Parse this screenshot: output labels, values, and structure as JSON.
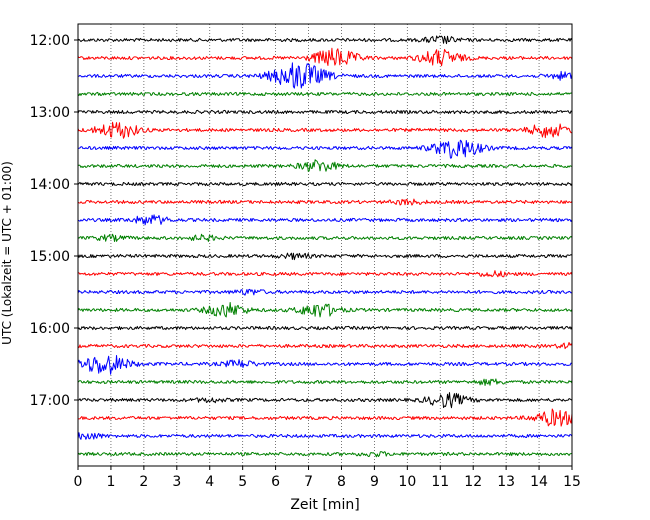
{
  "chart_data": {
    "type": "line",
    "title": "",
    "xlabel": "Zeit  [min]",
    "ylabel": "UTC (Lokalzeit = UTC + 01:00)",
    "xlim": [
      0,
      15
    ],
    "x_ticks": [
      "0",
      "1",
      "2",
      "3",
      "4",
      "5",
      "6",
      "7",
      "8",
      "9",
      "10",
      "11",
      "12",
      "13",
      "14",
      "15"
    ],
    "y_tick_labels": [
      "12:00",
      "13:00",
      "14:00",
      "15:00",
      "16:00",
      "17:00"
    ],
    "grid": "vertical dotted lines at each minute",
    "trace_start": "12:00",
    "trace_interval_min": 15,
    "trace_colors": [
      "#000000",
      "#ff0000",
      "#0000ff",
      "#008000"
    ],
    "traces": [
      {
        "start": "12:00",
        "color": "#000000",
        "events": [
          {
            "t": 11.0,
            "amp": 0.3
          }
        ]
      },
      {
        "start": "12:15",
        "color": "#ff0000",
        "events": [
          {
            "t": 7.8,
            "amp": 0.8
          },
          {
            "t": 11.0,
            "amp": 0.7
          }
        ]
      },
      {
        "start": "12:30",
        "color": "#0000ff",
        "events": [
          {
            "t": 6.7,
            "amp": 1.2
          },
          {
            "t": 14.8,
            "amp": 0.3
          }
        ]
      },
      {
        "start": "12:45",
        "color": "#008000",
        "events": []
      },
      {
        "start": "13:00",
        "color": "#000000",
        "events": []
      },
      {
        "start": "13:15",
        "color": "#ff0000",
        "events": [
          {
            "t": 1.2,
            "amp": 0.7
          },
          {
            "t": 14.3,
            "amp": 0.6
          }
        ]
      },
      {
        "start": "13:30",
        "color": "#0000ff",
        "events": [
          {
            "t": 11.5,
            "amp": 0.9
          }
        ]
      },
      {
        "start": "13:45",
        "color": "#008000",
        "events": [
          {
            "t": 7.3,
            "amp": 0.5
          }
        ]
      },
      {
        "start": "14:00",
        "color": "#000000",
        "events": []
      },
      {
        "start": "14:15",
        "color": "#ff0000",
        "events": [
          {
            "t": 10.0,
            "amp": 0.2
          }
        ]
      },
      {
        "start": "14:30",
        "color": "#0000ff",
        "events": [
          {
            "t": 2.2,
            "amp": 0.4
          }
        ]
      },
      {
        "start": "14:45",
        "color": "#008000",
        "events": [
          {
            "t": 1.0,
            "amp": 0.2
          },
          {
            "t": 3.8,
            "amp": 0.2
          }
        ]
      },
      {
        "start": "15:00",
        "color": "#000000",
        "events": [
          {
            "t": 6.6,
            "amp": 0.2
          }
        ]
      },
      {
        "start": "15:15",
        "color": "#ff0000",
        "events": [
          {
            "t": 12.6,
            "amp": 0.2
          }
        ]
      },
      {
        "start": "15:30",
        "color": "#0000ff",
        "events": [
          {
            "t": 5.2,
            "amp": 0.2
          }
        ]
      },
      {
        "start": "15:45",
        "color": "#008000",
        "events": [
          {
            "t": 4.5,
            "amp": 0.6
          },
          {
            "t": 7.3,
            "amp": 0.6
          }
        ]
      },
      {
        "start": "16:00",
        "color": "#000000",
        "events": []
      },
      {
        "start": "16:15",
        "color": "#ff0000",
        "events": [
          {
            "t": 15.0,
            "amp": 0.2
          }
        ]
      },
      {
        "start": "16:30",
        "color": "#0000ff",
        "events": [
          {
            "t": 0.8,
            "amp": 0.9
          },
          {
            "t": 4.9,
            "amp": 0.3
          }
        ]
      },
      {
        "start": "16:45",
        "color": "#008000",
        "events": [
          {
            "t": 12.5,
            "amp": 0.2
          }
        ]
      },
      {
        "start": "17:00",
        "color": "#000000",
        "events": [
          {
            "t": 11.2,
            "amp": 0.6
          },
          {
            "t": 4.0,
            "amp": 0.15
          }
        ]
      },
      {
        "start": "17:15",
        "color": "#ff0000",
        "events": [
          {
            "t": 14.5,
            "amp": 0.7
          }
        ]
      },
      {
        "start": "17:30",
        "color": "#0000ff",
        "events": [
          {
            "t": 0.2,
            "amp": 0.3
          }
        ]
      },
      {
        "start": "17:45",
        "color": "#008000",
        "events": [
          {
            "t": 9.0,
            "amp": 0.15
          }
        ]
      }
    ]
  }
}
